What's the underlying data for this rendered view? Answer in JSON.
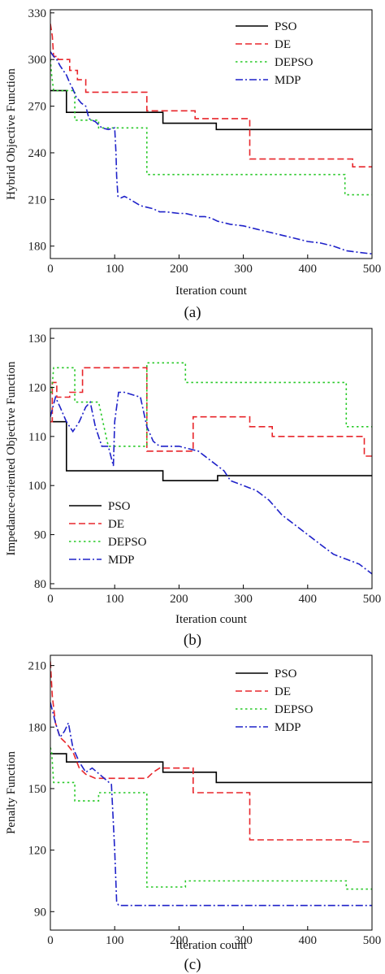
{
  "figure": {
    "panel_labels": [
      "(a)",
      "(b)",
      "(c)"
    ]
  },
  "colors": {
    "PSO": "#000000",
    "DE": "#e8262b",
    "DEPSO": "#27c927",
    "MDP": "#1f22c9",
    "axis": "#000000"
  },
  "chart_data": [
    {
      "type": "line",
      "title": "",
      "panel_label": "(a)",
      "xlabel": "Iteration count",
      "ylabel": "Hybrid Objective Function",
      "xlim": [
        0,
        500
      ],
      "ylim": [
        172,
        332
      ],
      "xticks": [
        0,
        100,
        200,
        300,
        400,
        500
      ],
      "yticks": [
        180,
        210,
        240,
        270,
        300,
        330
      ],
      "grid": false,
      "legend_position": "top-right",
      "legend": [
        "PSO",
        "DE",
        "DEPSO",
        "MDP"
      ],
      "series": [
        {
          "name": "PSO",
          "style": "solid",
          "x": [
            0,
            2,
            25,
            25,
            175,
            175,
            258,
            258,
            500
          ],
          "y": [
            280,
            280,
            280,
            266,
            266,
            259,
            259,
            255,
            255
          ]
        },
        {
          "name": "DE",
          "style": "dashed",
          "x": [
            0,
            3,
            5,
            12,
            12,
            30,
            30,
            42,
            42,
            55,
            55,
            150,
            150,
            225,
            225,
            310,
            310,
            470,
            470,
            500
          ],
          "y": [
            323,
            315,
            302,
            302,
            300,
            300,
            293,
            293,
            287,
            287,
            279,
            279,
            267,
            267,
            262,
            262,
            236,
            236,
            231,
            231
          ]
        },
        {
          "name": "DEPSO",
          "style": "dotted",
          "x": [
            0,
            2,
            5,
            5,
            38,
            38,
            75,
            75,
            150,
            150,
            458,
            458,
            500
          ],
          "y": [
            300,
            290,
            280,
            280,
            280,
            261,
            261,
            256,
            256,
            226,
            226,
            213,
            213
          ]
        },
        {
          "name": "MDP",
          "style": "dashdot",
          "x": [
            0,
            5,
            10,
            15,
            20,
            25,
            30,
            35,
            40,
            48,
            55,
            60,
            70,
            80,
            90,
            100,
            102,
            103,
            105,
            110,
            115,
            120,
            140,
            160,
            170,
            180,
            200,
            210,
            220,
            230,
            240,
            250,
            260,
            280,
            300,
            320,
            340,
            360,
            380,
            400,
            420,
            440,
            460,
            480,
            500
          ],
          "y": [
            305,
            302,
            300,
            296,
            293,
            290,
            285,
            281,
            276,
            272,
            270,
            262,
            260,
            256,
            255,
            256,
            240,
            225,
            212,
            211,
            212,
            211,
            206,
            204,
            202,
            202,
            201,
            201,
            200,
            199,
            199,
            198,
            196,
            194,
            193,
            191,
            189,
            187,
            185,
            183,
            182,
            180,
            177,
            176,
            175
          ]
        }
      ]
    },
    {
      "type": "line",
      "title": "",
      "panel_label": "(b)",
      "xlabel": "Iteration count",
      "ylabel": "Impedance-oriented Objective Function",
      "xlim": [
        0,
        500
      ],
      "ylim": [
        79,
        132
      ],
      "xticks": [
        0,
        100,
        200,
        300,
        400,
        500
      ],
      "yticks": [
        80,
        90,
        100,
        110,
        120,
        130
      ],
      "grid": false,
      "legend_position": "bottom-left",
      "legend": [
        "PSO",
        "DE",
        "DEPSO",
        "MDP"
      ],
      "series": [
        {
          "name": "PSO",
          "style": "solid",
          "x": [
            0,
            2,
            25,
            25,
            175,
            175,
            260,
            260,
            500
          ],
          "y": [
            113,
            113,
            113,
            103,
            103,
            101,
            101,
            102,
            102
          ]
        },
        {
          "name": "DE",
          "style": "dashed",
          "x": [
            0,
            3,
            3,
            10,
            10,
            30,
            30,
            50,
            50,
            150,
            150,
            222,
            222,
            310,
            310,
            345,
            345,
            488,
            488,
            500
          ],
          "y": [
            113,
            113,
            121,
            121,
            118,
            118,
            119,
            119,
            124,
            124,
            107,
            107,
            114,
            114,
            112,
            112,
            110,
            110,
            106,
            106
          ]
        },
        {
          "name": "DEPSO",
          "style": "dotted",
          "x": [
            0,
            2,
            5,
            5,
            38,
            38,
            75,
            75,
            90,
            90,
            150,
            150,
            210,
            210,
            460,
            460,
            500
          ],
          "y": [
            119,
            119,
            124,
            124,
            124,
            117,
            117,
            117,
            108,
            108,
            108,
            125,
            125,
            121,
            121,
            112,
            112
          ]
        },
        {
          "name": "MDP",
          "style": "dashdot",
          "x": [
            0,
            8,
            15,
            25,
            35,
            45,
            55,
            62,
            70,
            80,
            90,
            98,
            100,
            106,
            115,
            140,
            150,
            160,
            170,
            200,
            230,
            250,
            270,
            280,
            300,
            320,
            340,
            360,
            380,
            400,
            420,
            440,
            460,
            480,
            500
          ],
          "y": [
            114,
            118,
            116,
            113,
            111,
            113,
            116,
            117,
            112,
            108,
            108,
            104,
            113,
            119,
            119,
            118,
            112,
            109,
            108,
            108,
            107,
            105,
            103,
            101,
            100,
            99,
            97,
            94,
            92,
            90,
            88,
            86,
            85,
            84,
            82
          ]
        }
      ]
    },
    {
      "type": "line",
      "title": "",
      "panel_label": "(c)",
      "xlabel": "Iteration count",
      "ylabel": "Penalty Function",
      "xlim": [
        0,
        500
      ],
      "ylim": [
        81,
        215
      ],
      "xticks": [
        0,
        100,
        200,
        300,
        400,
        500
      ],
      "yticks": [
        90,
        120,
        150,
        180,
        210
      ],
      "grid": false,
      "legend_position": "top-right",
      "legend": [
        "PSO",
        "DE",
        "DEPSO",
        "MDP"
      ],
      "series": [
        {
          "name": "PSO",
          "style": "solid",
          "x": [
            0,
            2,
            25,
            25,
            175,
            175,
            258,
            258,
            500
          ],
          "y": [
            167,
            167,
            167,
            163,
            163,
            158,
            158,
            153,
            153
          ]
        },
        {
          "name": "DE",
          "style": "dashed",
          "x": [
            0,
            3,
            8,
            15,
            25,
            35,
            45,
            55,
            70,
            90,
            150,
            160,
            170,
            222,
            222,
            310,
            310,
            470,
            470,
            500
          ],
          "y": [
            212,
            195,
            182,
            175,
            172,
            168,
            160,
            157,
            155,
            155,
            155,
            158,
            160,
            160,
            148,
            148,
            125,
            125,
            124,
            124
          ]
        },
        {
          "name": "DEPSO",
          "style": "dotted",
          "x": [
            0,
            2,
            5,
            5,
            38,
            38,
            75,
            75,
            150,
            150,
            210,
            210,
            460,
            460,
            500
          ],
          "y": [
            170,
            168,
            153,
            153,
            153,
            144,
            144,
            148,
            148,
            102,
            102,
            105,
            105,
            101,
            101
          ]
        },
        {
          "name": "MDP",
          "style": "dashdot",
          "x": [
            0,
            8,
            15,
            22,
            28,
            35,
            45,
            55,
            65,
            80,
            95,
            100,
            103,
            106,
            200,
            300,
            400,
            500
          ],
          "y": [
            192,
            182,
            175,
            178,
            182,
            170,
            163,
            158,
            160,
            156,
            152,
            120,
            95,
            93,
            93,
            93,
            93,
            93
          ]
        }
      ]
    }
  ]
}
